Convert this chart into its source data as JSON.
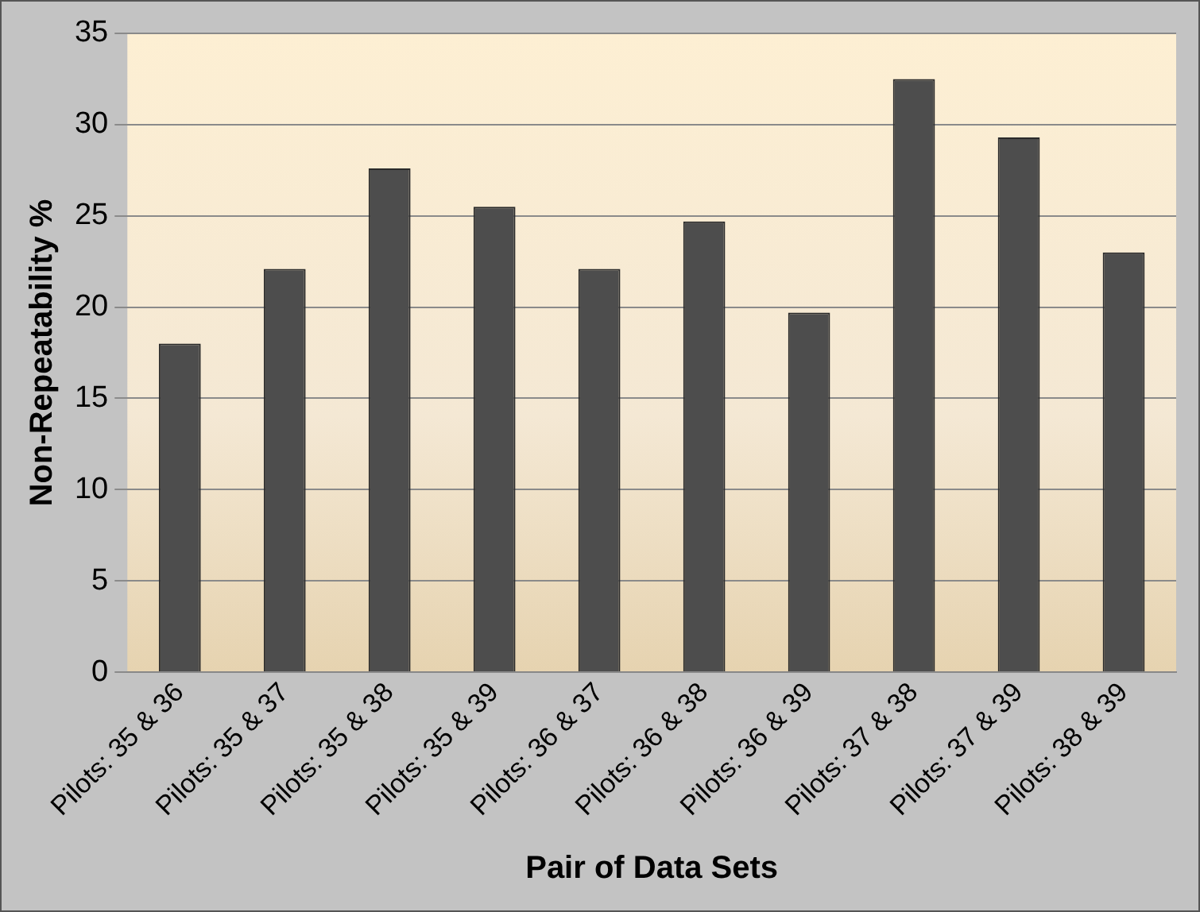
{
  "chart_data": {
    "type": "bar",
    "xlabel": "Pair of Data Sets",
    "ylabel": "Non-Repeatability %",
    "categories": [
      "Pilots: 35 & 36",
      "Pilots: 35 & 37",
      "Pilots: 35 & 38",
      "Pilots: 35 & 39",
      "Pilots: 36 & 37",
      "Pilots: 36 & 38",
      "Pilots: 36 & 39",
      "Pilots: 37 & 38",
      "Pilots: 37 & 39",
      "Pilots: 38 & 39"
    ],
    "values": [
      18,
      22.1,
      27.6,
      25.5,
      22.1,
      24.7,
      19.7,
      32.5,
      29.3,
      23
    ],
    "color": "#4d4d4d",
    "ylim": [
      0,
      35
    ],
    "yticks": [
      0,
      5,
      10,
      15,
      20,
      25,
      30,
      35
    ],
    "grid": "y",
    "legend": false
  }
}
